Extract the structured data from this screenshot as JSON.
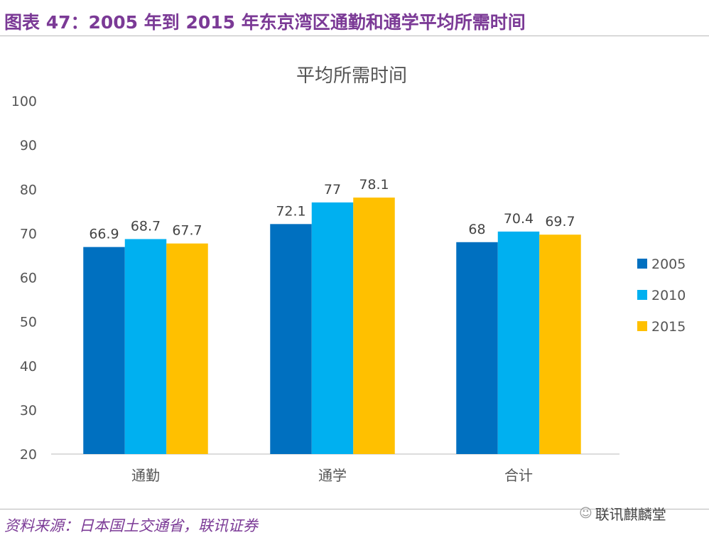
{
  "header": {
    "title": "图表 47：2005 年到 2015 年东京湾区通勤和通学平均所需时间"
  },
  "footer": {
    "source": "资料来源：日本国土交通省，联讯证券",
    "watermark": "联讯麒麟堂",
    "watermark_icon": "wechat-icon"
  },
  "chart_data": {
    "type": "bar",
    "title": "平均所需时间",
    "categories": [
      "通勤",
      "通学",
      "合计"
    ],
    "series": [
      {
        "name": "2005",
        "values": [
          66.9,
          72.1,
          68
        ],
        "labels": [
          "66.9",
          "72.1",
          "68"
        ],
        "color": "#0070C0"
      },
      {
        "name": "2010",
        "values": [
          68.7,
          77,
          70.4
        ],
        "labels": [
          "68.7",
          "77",
          "70.4"
        ],
        "color": "#00B0F0"
      },
      {
        "name": "2015",
        "values": [
          67.7,
          78.1,
          69.7
        ],
        "labels": [
          "67.7",
          "78.1",
          "69.7"
        ],
        "color": "#FFC000"
      }
    ],
    "ylim": [
      20,
      100
    ],
    "yticks": [
      "20",
      "30",
      "40",
      "50",
      "60",
      "70",
      "80",
      "90",
      "100"
    ],
    "grid": false,
    "legend": "right"
  }
}
